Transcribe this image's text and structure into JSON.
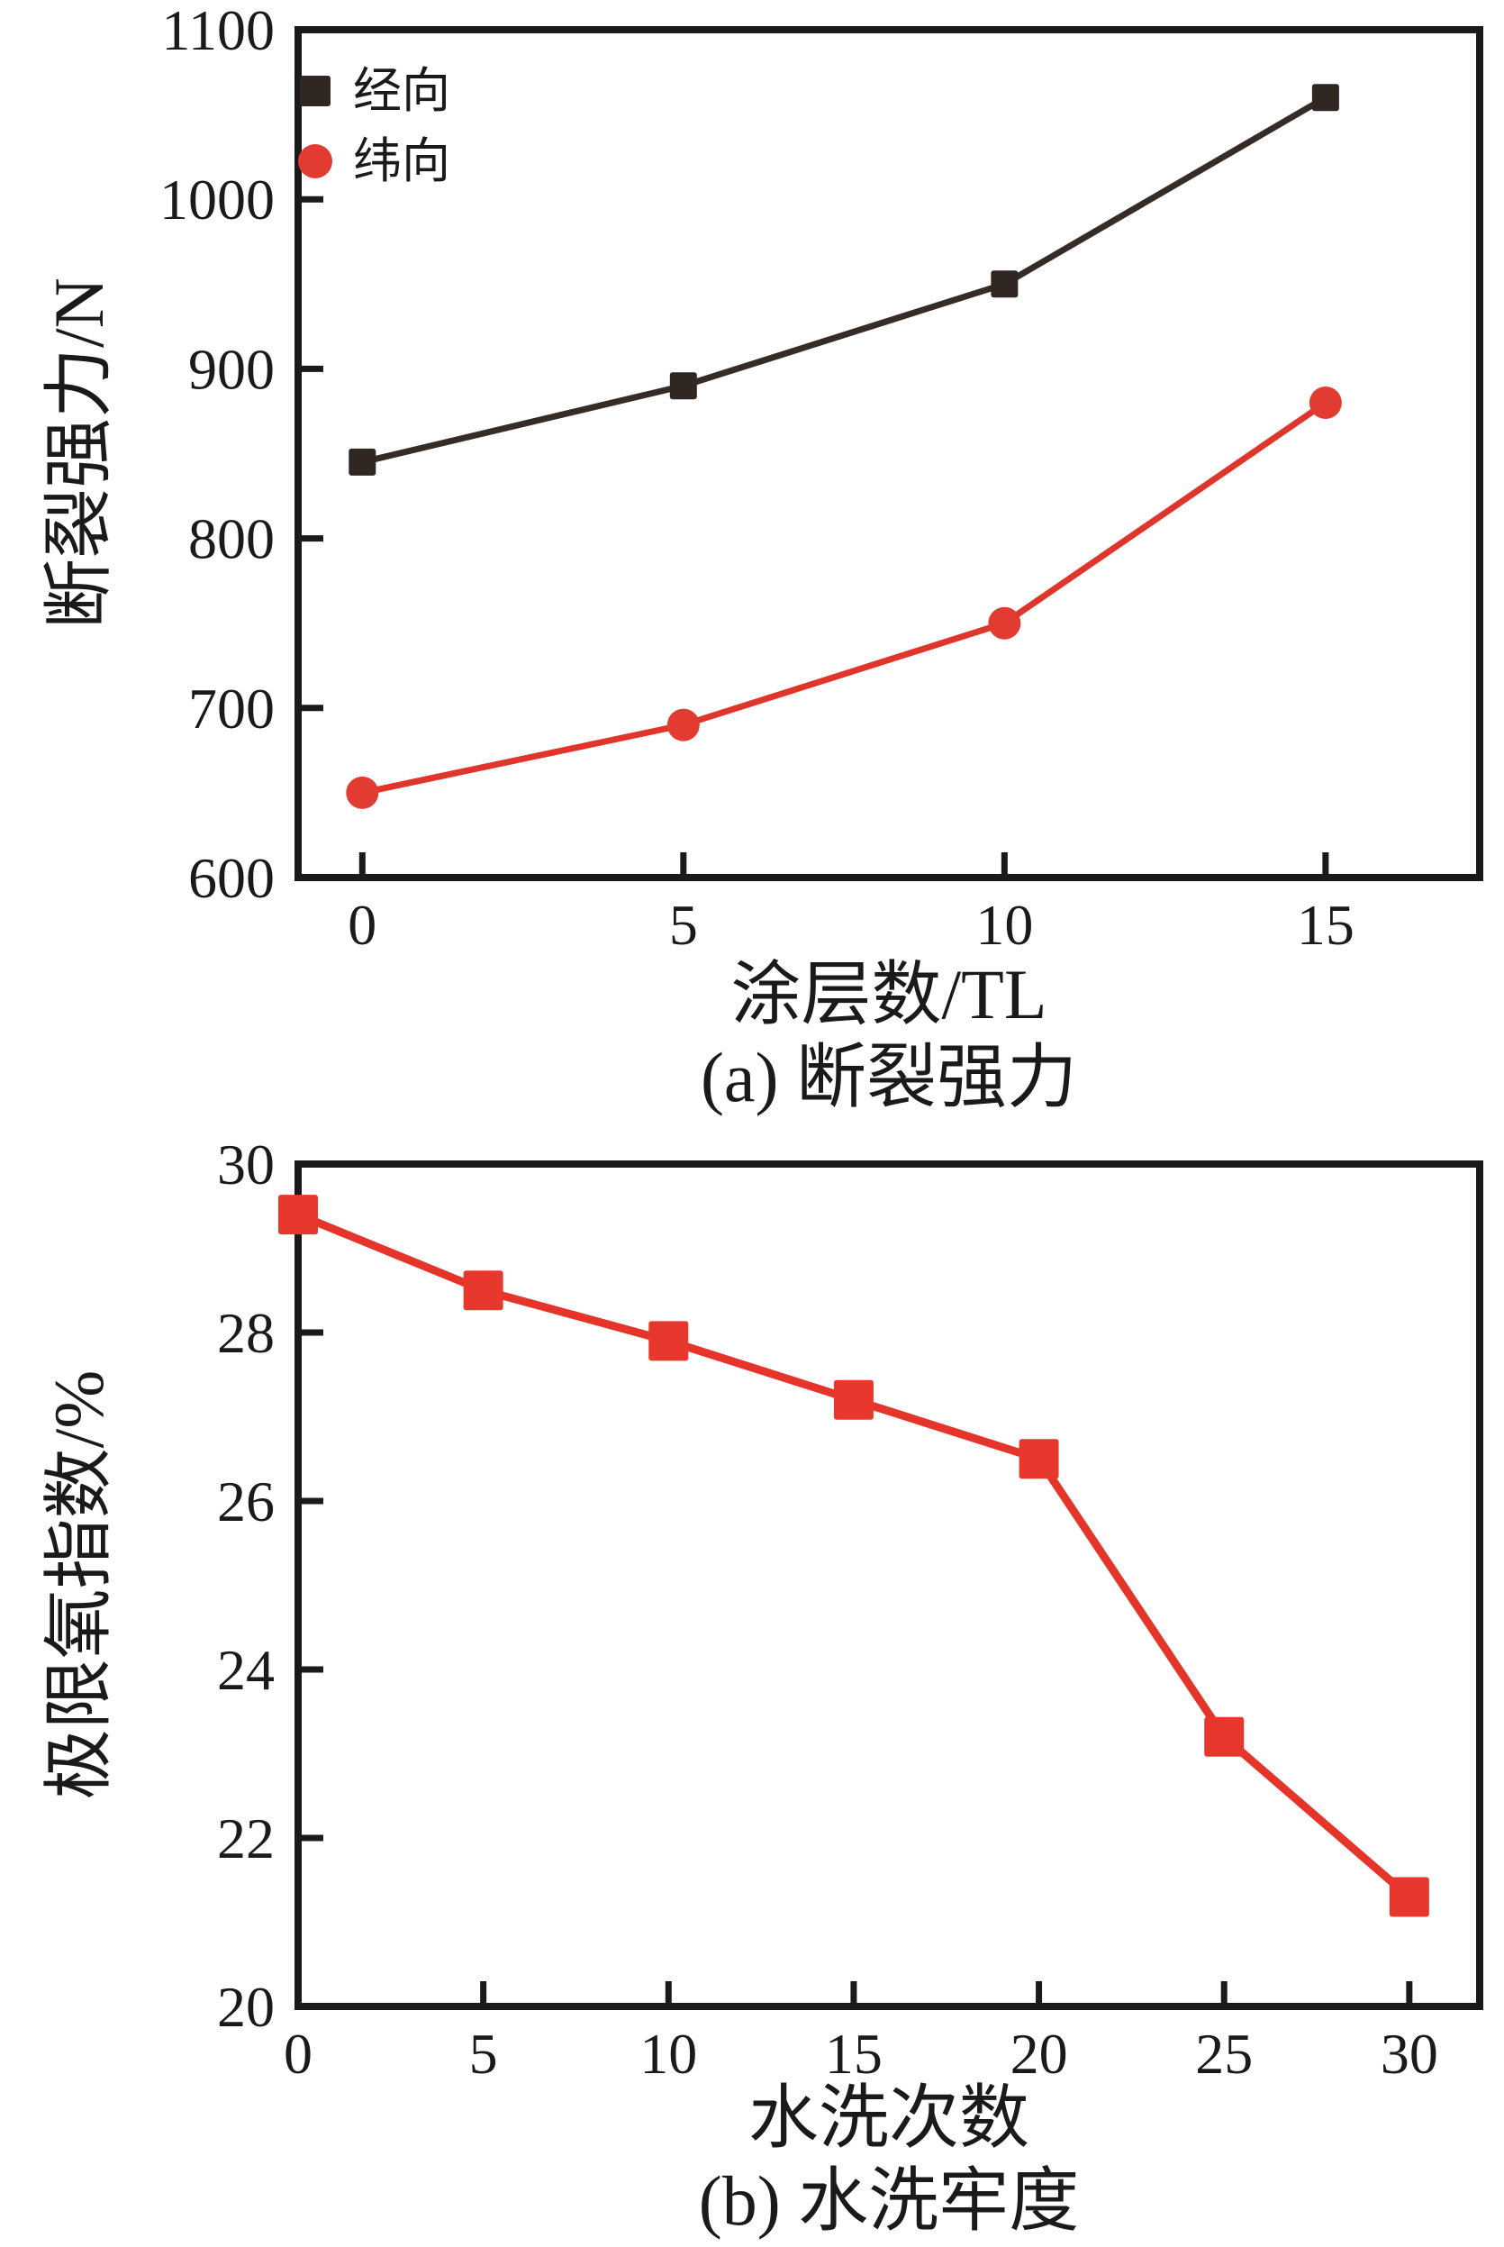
{
  "figure_background": "#ffffff",
  "text_color": "#1a1a1a",
  "frame_color": "#1a1a1a",
  "chart_data": [
    {
      "id": "a",
      "type": "line",
      "caption": "(a) 断裂强力",
      "xlabel": "涂层数/TL",
      "ylabel": "断裂强力/N",
      "xlim": [
        -1.0,
        17.4
      ],
      "ylim": [
        600,
        1100
      ],
      "xticks": [
        0,
        5,
        10,
        15
      ],
      "yticks": [
        600,
        700,
        800,
        900,
        1000,
        1100
      ],
      "grid": false,
      "legend_position": "inside-top-left",
      "x": [
        0,
        5,
        10,
        15
      ],
      "series": [
        {
          "name": "经向",
          "marker": "square",
          "color": "#302622",
          "line_color": "#362c27",
          "values": [
            845,
            890,
            950,
            1060
          ]
        },
        {
          "name": "纬向",
          "marker": "circle",
          "color": "#e23b32",
          "line_color": "#e0352b",
          "values": [
            650,
            690,
            750,
            880
          ]
        }
      ]
    },
    {
      "id": "b",
      "type": "line",
      "caption": "(b) 水洗牢度",
      "xlabel": "水洗次数",
      "ylabel": "极限氧指数/%",
      "xlim": [
        0,
        31.9
      ],
      "ylim": [
        20,
        30
      ],
      "xticks": [
        0,
        5,
        10,
        15,
        20,
        25,
        30
      ],
      "yticks": [
        20,
        22,
        24,
        26,
        28,
        30
      ],
      "grid": false,
      "x": [
        0,
        5,
        10,
        15,
        20,
        25,
        30
      ],
      "series": [
        {
          "marker": "square",
          "color": "#e8382d",
          "line_color": "#e53429",
          "values": [
            29.4,
            28.5,
            27.9,
            27.2,
            26.5,
            23.2,
            21.3
          ]
        }
      ]
    }
  ]
}
